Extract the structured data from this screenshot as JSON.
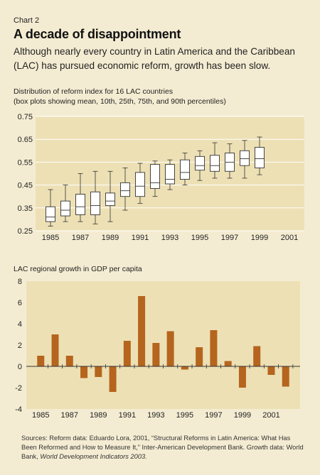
{
  "header": {
    "chart_label": "Chart 2",
    "title": "A decade of disappointment",
    "subtitle": "Although nearly every country in Latin America and the Caribbean (LAC) has pursued economic reform, growth has been slow."
  },
  "colors": {
    "panel": "#f4ecd2",
    "plot_bg": "#ede0b5",
    "bar": "#b5651d",
    "box_fill": "#ffffff",
    "line": "#333333"
  },
  "chart_data": [
    {
      "type": "box",
      "title_line1": "Distribution of reform index for 16 LAC countries",
      "title_line2": "(box plots showing mean, 10th, 25th, 75th, and 90th percentiles)",
      "ylim": [
        0.25,
        0.75
      ],
      "yticks": [
        0.25,
        0.35,
        0.45,
        0.55,
        0.65,
        0.75
      ],
      "ytick_labels": [
        "0.25",
        "0.35",
        "0.45",
        "0.55",
        "0.65",
        "0.75"
      ],
      "x_range": [
        1984,
        2002
      ],
      "xtick_labels": [
        "1985",
        "1987",
        "1989",
        "1991",
        "1993",
        "1995",
        "1997",
        "1999",
        "2001"
      ],
      "grid": true,
      "boxes": [
        {
          "year": 1985,
          "p10": 0.27,
          "q1": 0.29,
          "mean": 0.31,
          "q3": 0.355,
          "p90": 0.43
        },
        {
          "year": 1986,
          "p10": 0.29,
          "q1": 0.315,
          "mean": 0.34,
          "q3": 0.38,
          "p90": 0.45
        },
        {
          "year": 1987,
          "p10": 0.29,
          "q1": 0.32,
          "mean": 0.355,
          "q3": 0.41,
          "p90": 0.5
        },
        {
          "year": 1988,
          "p10": 0.28,
          "q1": 0.32,
          "mean": 0.36,
          "q3": 0.42,
          "p90": 0.51
        },
        {
          "year": 1989,
          "p10": 0.29,
          "q1": 0.36,
          "mean": 0.38,
          "q3": 0.415,
          "p90": 0.51
        },
        {
          "year": 1990,
          "p10": 0.34,
          "q1": 0.4,
          "mean": 0.425,
          "q3": 0.46,
          "p90": 0.525
        },
        {
          "year": 1991,
          "p10": 0.37,
          "q1": 0.4,
          "mean": 0.445,
          "q3": 0.505,
          "p90": 0.545
        },
        {
          "year": 1992,
          "p10": 0.4,
          "q1": 0.435,
          "mean": 0.46,
          "q3": 0.54,
          "p90": 0.555
        },
        {
          "year": 1993,
          "p10": 0.43,
          "q1": 0.455,
          "mean": 0.475,
          "q3": 0.54,
          "p90": 0.56
        },
        {
          "year": 1994,
          "p10": 0.45,
          "q1": 0.475,
          "mean": 0.505,
          "q3": 0.56,
          "p90": 0.59
        },
        {
          "year": 1995,
          "p10": 0.47,
          "q1": 0.515,
          "mean": 0.535,
          "q3": 0.575,
          "p90": 0.6
        },
        {
          "year": 1996,
          "p10": 0.48,
          "q1": 0.51,
          "mean": 0.535,
          "q3": 0.58,
          "p90": 0.635
        },
        {
          "year": 1997,
          "p10": 0.48,
          "q1": 0.51,
          "mean": 0.55,
          "q3": 0.59,
          "p90": 0.63
        },
        {
          "year": 1998,
          "p10": 0.48,
          "q1": 0.535,
          "mean": 0.565,
          "q3": 0.6,
          "p90": 0.645
        },
        {
          "year": 1999,
          "p10": 0.495,
          "q1": 0.525,
          "mean": 0.565,
          "q3": 0.615,
          "p90": 0.66
        }
      ]
    },
    {
      "type": "bar",
      "title": "LAC regional growth in GDP per capita",
      "ylim": [
        -4,
        8
      ],
      "yticks": [
        -4,
        -2,
        0,
        2,
        4,
        6,
        8
      ],
      "ytick_labels": [
        "-4",
        "-2",
        "0",
        "2",
        "4",
        "6",
        "8"
      ],
      "x_range": [
        1984,
        2003
      ],
      "xtick_labels": [
        "1985",
        "1987",
        "1989",
        "1991",
        "1993",
        "1995",
        "1997",
        "1999",
        "2001"
      ],
      "grid": false,
      "x": [
        1985,
        1986,
        1987,
        1988,
        1989,
        1990,
        1991,
        1992,
        1993,
        1994,
        1995,
        1996,
        1997,
        1998,
        1999,
        2000,
        2001,
        2002
      ],
      "values": [
        1.0,
        3.0,
        1.0,
        -1.1,
        -1.0,
        -2.4,
        2.4,
        6.6,
        2.2,
        3.3,
        -0.3,
        1.8,
        3.4,
        0.5,
        -2.0,
        1.9,
        -0.8,
        -1.9
      ]
    }
  ],
  "sources": {
    "line1": "Sources: Reform data: Eduardo Lora, 2001, “Structural Reforms in Latin America: What Has Been Reformed and How to Measure It,” Inter-American Development Bank. Growth data: World Bank,",
    "line2": "World Development Indicators 2003."
  }
}
